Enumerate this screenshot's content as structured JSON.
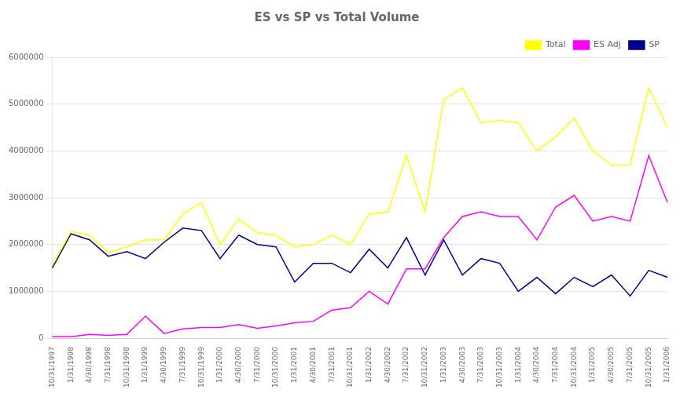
{
  "chart_data": {
    "type": "line",
    "title": "ES vs SP vs Total Volume",
    "categories": [
      "10/31/1997",
      "1/31/1998",
      "4/30/1998",
      "7/31/1998",
      "10/31/1998",
      "1/31/1999",
      "4/30/1999",
      "7/31/1999",
      "10/31/1999",
      "1/31/2000",
      "4/30/2000",
      "7/31/2000",
      "10/31/2000",
      "1/31/2001",
      "4/30/2001",
      "7/31/2001",
      "10/31/2001",
      "1/31/2002",
      "4/30/2002",
      "7/31/2002",
      "10/31/2002",
      "1/31/2003",
      "4/30/2003",
      "7/31/2003",
      "10/31/2003",
      "1/31/2004",
      "4/30/2004",
      "7/31/2004",
      "10/31/2004",
      "1/31/2005",
      "4/30/2005",
      "7/31/2005",
      "10/31/2005",
      "1/31/2006"
    ],
    "series": [
      {
        "name": "Total",
        "color": "#FFFF00",
        "values": [
          1550000,
          2280000,
          2200000,
          1830000,
          1950000,
          2100000,
          2100000,
          2650000,
          2900000,
          2000000,
          2550000,
          2250000,
          2200000,
          1950000,
          2000000,
          2200000,
          2000000,
          2650000,
          2700000,
          3900000,
          2700000,
          5100000,
          5350000,
          4600000,
          4650000,
          4600000,
          4000000,
          4300000,
          4700000,
          4000000,
          3700000,
          3700000,
          5350000,
          4500000
        ]
      },
      {
        "name": "ES Adj",
        "color": "#FF00FF",
        "values": [
          30000,
          30000,
          80000,
          60000,
          80000,
          470000,
          100000,
          200000,
          230000,
          230000,
          290000,
          210000,
          260000,
          330000,
          360000,
          600000,
          650000,
          1000000,
          730000,
          1480000,
          1480000,
          2150000,
          2600000,
          2700000,
          2600000,
          2600000,
          2100000,
          2800000,
          3050000,
          2500000,
          2600000,
          2500000,
          3900000,
          2900000
        ]
      },
      {
        "name": "SP",
        "color": "#00008B",
        "values": [
          1500000,
          2230000,
          2100000,
          1750000,
          1850000,
          1700000,
          2050000,
          2350000,
          2300000,
          1700000,
          2200000,
          2000000,
          1950000,
          1200000,
          1600000,
          1600000,
          1400000,
          1900000,
          1500000,
          2150000,
          1350000,
          2100000,
          1350000,
          1700000,
          1600000,
          1000000,
          1300000,
          950000,
          1300000,
          1100000,
          1350000,
          900000,
          1450000,
          1300000
        ]
      }
    ],
    "ylim": [
      0,
      6000000
    ],
    "yticks": [
      0,
      1000000,
      2000000,
      3000000,
      4000000,
      5000000,
      6000000
    ],
    "grid": true,
    "legend": "upper right"
  }
}
